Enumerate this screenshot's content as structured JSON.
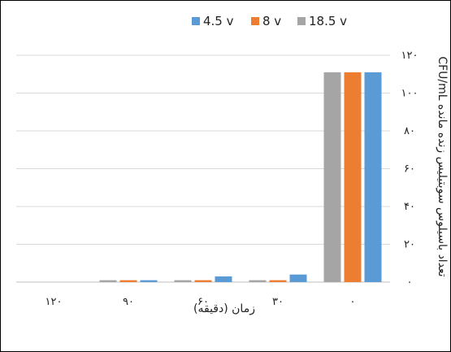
{
  "chart_data": {
    "type": "bar",
    "categories": [
      "۰",
      "۳۰",
      "۶۰",
      "۹۰",
      "۱۲۰"
    ],
    "x_direction": "right-to-left",
    "series": [
      {
        "name": "4.5 v",
        "color": "#5B9BD5",
        "values": [
          111,
          4,
          3,
          1,
          0
        ]
      },
      {
        "name": "8 v",
        "color": "#ED7D31",
        "values": [
          111,
          1,
          1,
          1,
          0
        ]
      },
      {
        "name": "18.5 v",
        "color": "#A5A5A5",
        "values": [
          111,
          1,
          1,
          1,
          0
        ]
      }
    ],
    "xlabel": "زمان (دقیقه)",
    "ylabel": "CFU/mL تعداد باسیلوس سوبتیلیس زنده مانده",
    "y_ticks": [
      "۰",
      "۲۰",
      "۴۰",
      "۶۰",
      "۸۰",
      "۱۰۰",
      "۱۲۰"
    ],
    "y_tick_values": [
      0,
      20,
      40,
      60,
      80,
      100,
      120
    ],
    "ylim": [
      0,
      120
    ],
    "y_axis_side": "right",
    "legend_position": "top",
    "grid": true
  }
}
